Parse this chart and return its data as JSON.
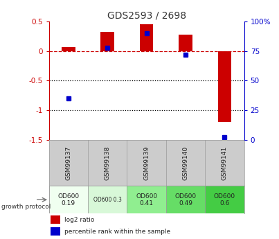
{
  "title": "GDS2593 / 2698",
  "samples": [
    "GSM99137",
    "GSM99138",
    "GSM99139",
    "GSM99140",
    "GSM99141"
  ],
  "log2_ratio": [
    0.07,
    0.33,
    0.45,
    0.28,
    -1.2
  ],
  "pct_rank": [
    35,
    78,
    90,
    72,
    2
  ],
  "ylim_left": [
    -1.5,
    0.5
  ],
  "protocol_labels": [
    "OD600\n0.19",
    "OD600 0.3",
    "OD600\n0.41",
    "OD600\n0.49",
    "OD600\n0.6"
  ],
  "protocol_colors": [
    "#f0fff0",
    "#d8f8d8",
    "#90ee90",
    "#66dd66",
    "#44cc44"
  ],
  "bar_color_red": "#cc0000",
  "bar_color_blue": "#0000cc",
  "bar_width": 0.35,
  "zero_line_color": "#cc0000",
  "dotted_line_color": "#000000",
  "bg_color": "#ffffff",
  "sample_box_color": "#cccccc",
  "legend_red_label": "log2 ratio",
  "legend_blue_label": "percentile rank within the sample"
}
